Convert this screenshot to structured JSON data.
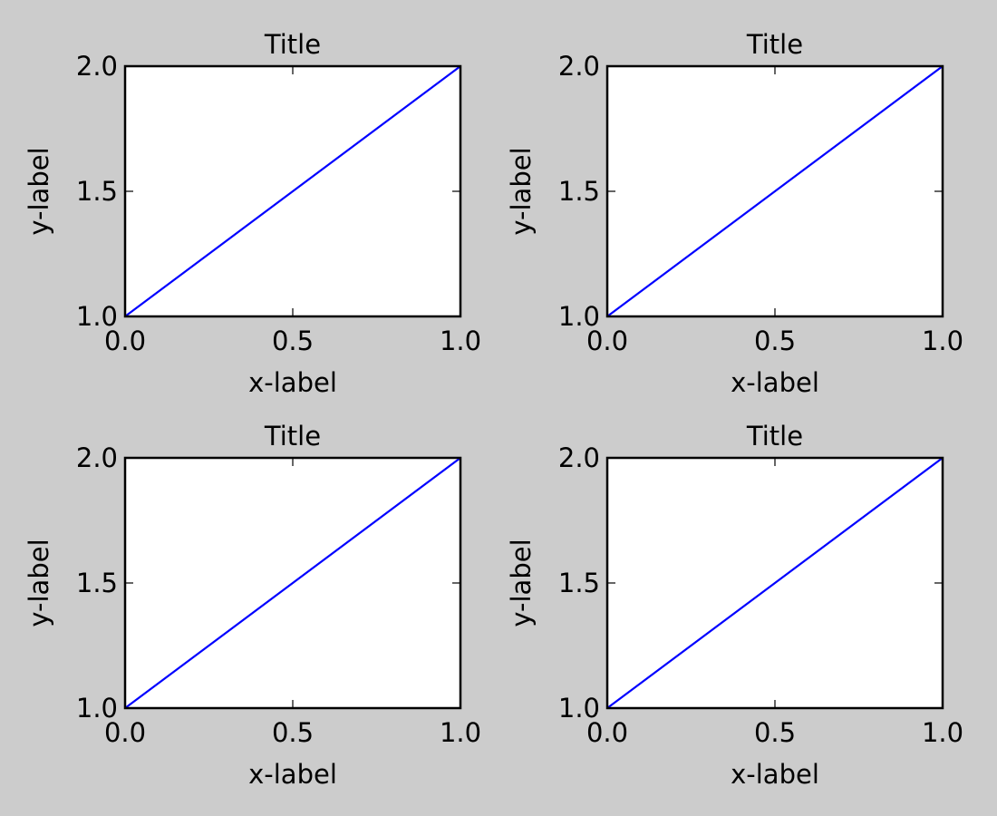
{
  "figure": {
    "background": "#cccccc"
  },
  "chart_data": [
    {
      "type": "line",
      "title": "Title",
      "xlabel": "x-label",
      "ylabel": "y-label",
      "xlim": [
        0,
        1
      ],
      "ylim": [
        1,
        2
      ],
      "xticks": [
        0.0,
        0.5,
        1.0
      ],
      "xtick_labels": [
        "0.0",
        "0.5",
        "1.0"
      ],
      "yticks": [
        1.0,
        1.5,
        2.0
      ],
      "ytick_labels": [
        "1.0",
        "1.5",
        "2.0"
      ],
      "grid": false,
      "series": [
        {
          "x": [
            0,
            1
          ],
          "y": [
            1,
            2
          ],
          "color": "#0000ff"
        }
      ]
    },
    {
      "type": "line",
      "title": "Title",
      "xlabel": "x-label",
      "ylabel": "y-label",
      "xlim": [
        0,
        1
      ],
      "ylim": [
        1,
        2
      ],
      "xticks": [
        0.0,
        0.5,
        1.0
      ],
      "xtick_labels": [
        "0.0",
        "0.5",
        "1.0"
      ],
      "yticks": [
        1.0,
        1.5,
        2.0
      ],
      "ytick_labels": [
        "1.0",
        "1.5",
        "2.0"
      ],
      "grid": false,
      "series": [
        {
          "x": [
            0,
            1
          ],
          "y": [
            1,
            2
          ],
          "color": "#0000ff"
        }
      ]
    },
    {
      "type": "line",
      "title": "Title",
      "xlabel": "x-label",
      "ylabel": "y-label",
      "xlim": [
        0,
        1
      ],
      "ylim": [
        1,
        2
      ],
      "xticks": [
        0.0,
        0.5,
        1.0
      ],
      "xtick_labels": [
        "0.0",
        "0.5",
        "1.0"
      ],
      "yticks": [
        1.0,
        1.5,
        2.0
      ],
      "ytick_labels": [
        "1.0",
        "1.5",
        "2.0"
      ],
      "grid": false,
      "series": [
        {
          "x": [
            0,
            1
          ],
          "y": [
            1,
            2
          ],
          "color": "#0000ff"
        }
      ]
    },
    {
      "type": "line",
      "title": "Title",
      "xlabel": "x-label",
      "ylabel": "y-label",
      "xlim": [
        0,
        1
      ],
      "ylim": [
        1,
        2
      ],
      "xticks": [
        0.0,
        0.5,
        1.0
      ],
      "xtick_labels": [
        "0.0",
        "0.5",
        "1.0"
      ],
      "yticks": [
        1.0,
        1.5,
        2.0
      ],
      "ytick_labels": [
        "1.0",
        "1.5",
        "2.0"
      ],
      "grid": false,
      "series": [
        {
          "x": [
            0,
            1
          ],
          "y": [
            1,
            2
          ],
          "color": "#0000ff"
        }
      ]
    }
  ]
}
